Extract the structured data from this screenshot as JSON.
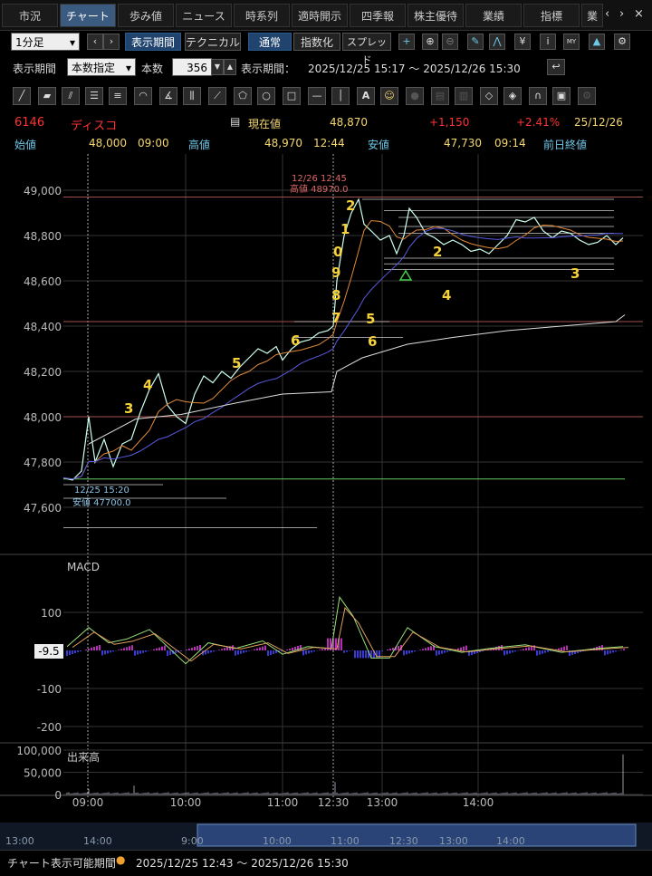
{
  "tabs": [
    {
      "label": "市況"
    },
    {
      "label": "チャート"
    },
    {
      "label": "歩み値"
    },
    {
      "label": "ニュース"
    },
    {
      "label": "時系列"
    },
    {
      "label": "適時開示"
    },
    {
      "label": "四季報"
    },
    {
      "label": "株主優待"
    },
    {
      "label": "業績"
    },
    {
      "label": "指標"
    },
    {
      "label": "業"
    }
  ],
  "toolbar": {
    "interval": "1分足",
    "period_button": "表示期間",
    "technical_button": "テクニカル",
    "mode_normal": "通常",
    "mode_index": "指数化",
    "mode_spread": "スプレッド"
  },
  "period_row": {
    "label": "表示期間",
    "select": "本数指定",
    "count_label": "本数",
    "count_value": "356",
    "range_label": "表示期間：",
    "range": "2025/12/25 15:17 ～ 2025/12/26 15:30"
  },
  "quote": {
    "code": "6146",
    "name": "ディスコ",
    "current_label": "現在値",
    "current": "48,870",
    "change": "+1,150",
    "change_pct": "+2.41%",
    "date": "25/12/26",
    "open_label": "始値",
    "open": "48,000",
    "open_time": "09:00",
    "high_label": "高値",
    "high": "48,970",
    "high_time": "12:44",
    "low_label": "安値",
    "low": "47,730",
    "low_time": "09:14",
    "prev_close_label": "前日終値"
  },
  "icons": [
    "line-tool",
    "ruler-tool",
    "parallel-tool",
    "fibo-tool",
    "channel-tool",
    "arc-tool",
    "fan-tool",
    "bars-tool",
    "gann-tool",
    "pentagon-tool",
    "circle-tool",
    "rect-tool",
    "hline-tool",
    "vline-tool",
    "text-tool",
    "icon-tool"
  ],
  "chart_data": {
    "type": "candlestick",
    "price_axis": {
      "ticks": [
        "49,000",
        "48,800",
        "48,600",
        "48,400",
        "48,200",
        "48,000",
        "47,800",
        "47,600"
      ],
      "ylim": [
        47500,
        49050
      ]
    },
    "time_axis": {
      "ticks": [
        "09:00",
        "10:00",
        "11:00",
        "12:30",
        "13:00",
        "14:00"
      ]
    },
    "annotations": {
      "high_time": "12/26 12:45",
      "high_value": "高値 48970.0",
      "low_time": "12/25 15:20",
      "low_value": "安値 47700.0",
      "counts": [
        "3",
        "4",
        "5",
        "6",
        "7",
        "8",
        "9",
        "0",
        "1",
        "2",
        "2",
        "3",
        "4",
        "5",
        "6"
      ]
    },
    "macd": {
      "label": "MACD",
      "ticks": [
        "100",
        "-100",
        "-200"
      ],
      "current": "-9.5"
    },
    "volume": {
      "label": "出来高",
      "ticks": [
        "100,000",
        "50,000",
        "0"
      ]
    },
    "navigator_ticks": [
      "13:00",
      "14:00",
      "9:00",
      "10:00",
      "11:00",
      "12:30",
      "13:00",
      "14:00"
    ]
  },
  "footer": {
    "label": "チャート表示可能期間",
    "range": "2025/12/25 12:43 ～ 2025/12/26 15:30"
  }
}
